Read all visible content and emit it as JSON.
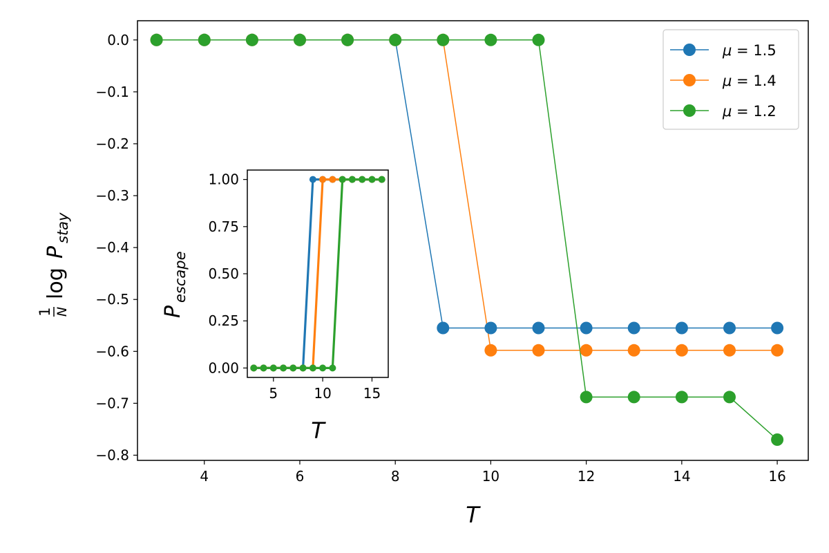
{
  "colors": {
    "blue": "#1f77b4",
    "orange": "#ff7f0e",
    "green": "#2ca02c"
  },
  "chart_data": [
    {
      "type": "line",
      "title": "",
      "xlabel": "T",
      "ylabel": "1/N log P_stay",
      "ylabel_parts": {
        "frac_num": "1",
        "frac_den": "N",
        "log": "log",
        "P": "P",
        "sub": "stay"
      },
      "xlim": [
        2.6,
        16.65
      ],
      "ylim": [
        -0.81,
        0.037
      ],
      "xticks": [
        4,
        6,
        8,
        10,
        12,
        14,
        16
      ],
      "yticks": [
        0.0,
        -0.1,
        -0.2,
        -0.3,
        -0.4,
        -0.5,
        -0.6,
        -0.7,
        -0.8
      ],
      "xtick_labels": [
        "4",
        "6",
        "8",
        "10",
        "12",
        "14",
        "16"
      ],
      "ytick_labels": [
        "0.0",
        "−0.1",
        "−0.2",
        "−0.3",
        "−0.4",
        "−0.5",
        "−0.6",
        "−0.7",
        "−0.8"
      ],
      "grid": false,
      "legend_placement": "top-right",
      "x": [
        3,
        4,
        5,
        6,
        7,
        8,
        9,
        10,
        11,
        12,
        13,
        14,
        15,
        16
      ],
      "series": [
        {
          "name": "μ = 1.5",
          "name_parts": {
            "sym": "μ",
            "rest": " = 1.5"
          },
          "color_key": "blue",
          "values": [
            0,
            0,
            0,
            0,
            0,
            0,
            -0.555,
            -0.555,
            -0.555,
            -0.555,
            -0.555,
            -0.555,
            -0.555,
            -0.555
          ]
        },
        {
          "name": "μ = 1.4",
          "name_parts": {
            "sym": "μ",
            "rest": " = 1.4"
          },
          "color_key": "orange",
          "values": [
            0,
            0,
            0,
            0,
            0,
            0,
            0,
            -0.598,
            -0.598,
            -0.598,
            -0.598,
            -0.598,
            -0.598,
            -0.598
          ]
        },
        {
          "name": "μ = 1.2",
          "name_parts": {
            "sym": "μ",
            "rest": " = 1.2"
          },
          "color_key": "green",
          "values": [
            0,
            0,
            0,
            0,
            0,
            0,
            0,
            0,
            0,
            -0.688,
            -0.688,
            -0.688,
            -0.688,
            -0.77
          ]
        }
      ]
    },
    {
      "type": "line",
      "title": "",
      "xlabel": "T",
      "ylabel": "P_escape",
      "ylabel_parts": {
        "P": "P",
        "sub": "escape"
      },
      "xlim": [
        2.35,
        16.65
      ],
      "ylim": [
        -0.05,
        1.05
      ],
      "xticks": [
        5,
        10,
        15
      ],
      "yticks": [
        0.0,
        0.25,
        0.5,
        0.75,
        1.0
      ],
      "xtick_labels": [
        "5",
        "10",
        "15"
      ],
      "ytick_labels": [
        "0.00",
        "0.25",
        "0.50",
        "0.75",
        "1.00"
      ],
      "grid": false,
      "x": [
        3,
        4,
        5,
        6,
        7,
        8,
        9,
        10,
        11,
        12,
        13,
        14,
        15,
        16
      ],
      "series": [
        {
          "color_key": "blue",
          "values": [
            0,
            0,
            0,
            0,
            0,
            0,
            1,
            1,
            1,
            1,
            1,
            1,
            1,
            1
          ]
        },
        {
          "color_key": "orange",
          "values": [
            0,
            0,
            0,
            0,
            0,
            0,
            0,
            1,
            1,
            1,
            1,
            1,
            1,
            1
          ]
        },
        {
          "color_key": "green",
          "values": [
            0,
            0,
            0,
            0,
            0,
            0,
            0,
            0,
            0,
            1,
            1,
            1,
            1,
            1
          ]
        }
      ]
    }
  ]
}
